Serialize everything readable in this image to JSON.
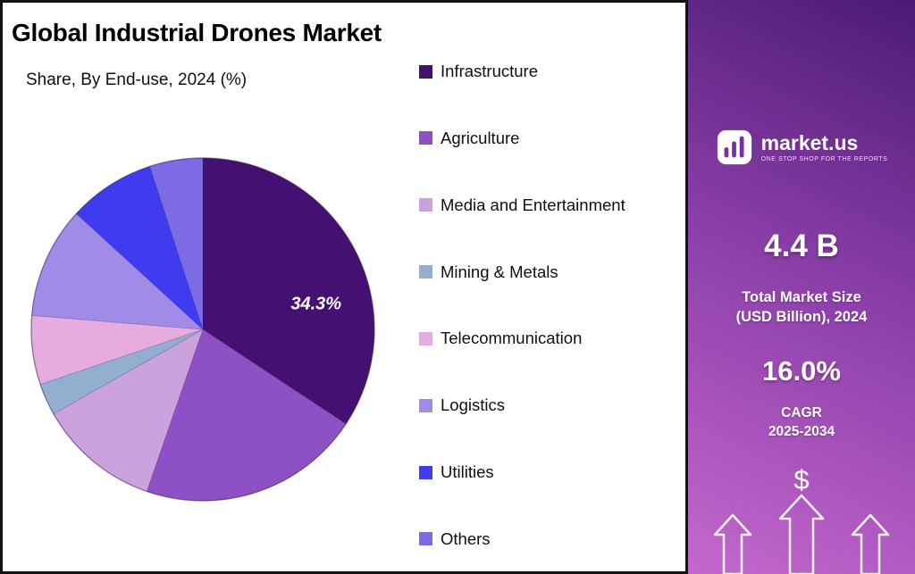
{
  "header": {
    "title": "Global Industrial Drones Market",
    "subtitle": "Share, By End-use, 2024 (%)"
  },
  "chart_data": {
    "type": "pie",
    "title": "Global Industrial Drones Market",
    "subtitle": "Share, By End-use, 2024 (%)",
    "unit": "percent share",
    "start_angle_deg": 0,
    "direction": "clockwise",
    "legend_position": "right",
    "slices": [
      {
        "label": "Infrastructure",
        "value": 34.3,
        "color": "#441173",
        "data_label": "34.3%"
      },
      {
        "label": "Agriculture",
        "value": 21.0,
        "color": "#8E51C5"
      },
      {
        "label": "Media and Entertainment",
        "value": 11.5,
        "color": "#CBA2DE"
      },
      {
        "label": "Mining & Metals",
        "value": 3.0,
        "color": "#92AFD0"
      },
      {
        "label": "Telecommunication",
        "value": 6.5,
        "color": "#E6ACE0"
      },
      {
        "label": "Logistics",
        "value": 10.5,
        "color": "#A08BE8"
      },
      {
        "label": "Utilities",
        "value": 8.2,
        "color": "#3F3BEF"
      },
      {
        "label": "Others",
        "value": 5.0,
        "color": "#7D6BE6"
      }
    ],
    "data_label_style": {
      "angle_deg": 80,
      "radius_frac": 0.67
    }
  },
  "sidebar": {
    "brand": {
      "name": "market.us",
      "tagline": "ONE STOP SHOP FOR THE REPORTS"
    },
    "market_size": {
      "value": "4.4 B",
      "label_line1": "Total Market Size",
      "label_line2": "(USD Billion), 2024"
    },
    "cagr": {
      "value": "16.0%",
      "label_line1": "CAGR",
      "label_line2": "2025-2034"
    },
    "currency_symbol": "$"
  },
  "colors": {
    "panel_border": "#121212",
    "sidebar_gradient_top": "#4B1B74",
    "sidebar_gradient_mid": "#8C3FA9",
    "sidebar_gradient_bottom": "#C468CE",
    "pie_label_text": "#FFFFFF"
  }
}
